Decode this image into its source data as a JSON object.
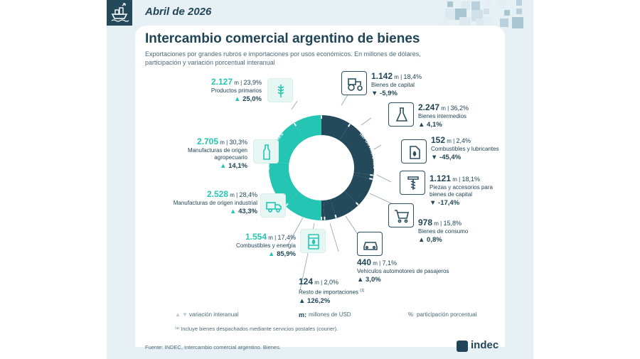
{
  "header": {
    "date": "Abril de 2026"
  },
  "title": "Intercambio comercial argentino de bienes",
  "subtitle": "Exportaciones por grandes rubros e importaciones por usos económicos. En millones de dólares, participación y variación porcentual interanual",
  "chart_data": {
    "type": "pie",
    "rings": [
      {
        "name": "EXPORTACIONES",
        "total_share": 100
      },
      {
        "name": "IMPORTACIONES",
        "total_share": 100
      }
    ],
    "exports": [
      {
        "value": "2.127",
        "unit": "m",
        "share": "23,9%",
        "share_num": 23.9,
        "label": "Productos primarios",
        "variation": "25,0%",
        "dir": "up"
      },
      {
        "value": "2.705",
        "unit": "m",
        "share": "30,3%",
        "share_num": 30.3,
        "label": "Manufacturas de origen agropecuario",
        "variation": "14,1%",
        "dir": "up"
      },
      {
        "value": "2.528",
        "unit": "m",
        "share": "28,4%",
        "share_num": 28.4,
        "label": "Manufacturas de origen industrial",
        "variation": "43,3%",
        "dir": "up"
      },
      {
        "value": "1.554",
        "unit": "m",
        "share": "17,4%",
        "share_num": 17.4,
        "label": "Combustibles y energía",
        "variation": "85,9%",
        "dir": "up"
      }
    ],
    "imports": [
      {
        "value": "1.142",
        "unit": "m",
        "share": "18,4%",
        "share_num": 18.4,
        "label": "Bienes de capital",
        "variation": "-5,9%",
        "dir": "down"
      },
      {
        "value": "2.247",
        "unit": "m",
        "share": "36,2%",
        "share_num": 36.2,
        "label": "Bienes intermedios",
        "variation": "4,1%",
        "dir": "up"
      },
      {
        "value": "152",
        "unit": "m",
        "share": "2,4%",
        "share_num": 2.4,
        "label": "Combustibles y lubricantes",
        "variation": "-45,4%",
        "dir": "down"
      },
      {
        "value": "1.121",
        "unit": "m",
        "share": "18,1%",
        "share_num": 18.1,
        "label": "Piezas y accesorios para bienes de capital",
        "variation": "-17,4%",
        "dir": "down"
      },
      {
        "value": "978",
        "unit": "m",
        "share": "15,8%",
        "share_num": 15.8,
        "label": "Bienes de consumo",
        "variation": "0,8%",
        "dir": "up"
      },
      {
        "value": "440",
        "unit": "m",
        "share": "7,1%",
        "share_num": 7.1,
        "label": "Vehículos automotores de pasajeros",
        "variation": "3,0%",
        "dir": "up"
      },
      {
        "value": "124",
        "unit": "m",
        "share": "2,0%",
        "share_num": 2.0,
        "label": "Resto de importaciones",
        "label_note": "(1)",
        "variation": "126,2%",
        "dir": "up"
      }
    ],
    "colors": {
      "exports": "#24c6b3",
      "imports": "#24495b",
      "text": "#1f4557"
    }
  },
  "ring_labels": {
    "exports": "EXPORTACIONES",
    "imports": "IMPORTACIONES"
  },
  "legend": {
    "variation": "variación interanual",
    "millions_key": "m:",
    "millions": "millones de USD",
    "share_key": "%",
    "share": "participación porcentual"
  },
  "note": "⁽¹⁾ Incluye bienes despachados mediante servicios postales (courier).",
  "source": "Fuente: INDEC, Intercambio comercial argentino. Bienes.",
  "logo": "indec",
  "icons": {
    "exports": [
      "wheat-icon",
      "bottle-icon",
      "truck-icon",
      "fuel-barrel-icon"
    ],
    "imports": [
      "tractor-icon",
      "flask-icon",
      "fuel-can-icon",
      "screw-icon",
      "cart-icon",
      "car-icon"
    ]
  }
}
